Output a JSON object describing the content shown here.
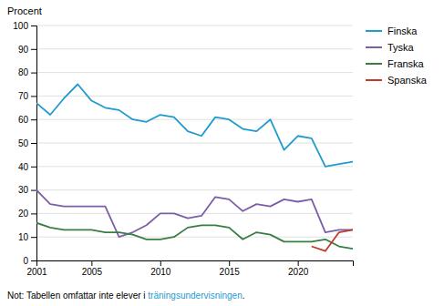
{
  "chart_data": {
    "type": "line",
    "ylabel": "Procent",
    "x": [
      2001,
      2002,
      2003,
      2004,
      2005,
      2006,
      2007,
      2008,
      2009,
      2010,
      2011,
      2012,
      2013,
      2014,
      2015,
      2016,
      2017,
      2018,
      2019,
      2020,
      2021,
      2022,
      2023,
      2024
    ],
    "series": [
      {
        "name": "Finska",
        "color": "#1f9bce",
        "values": [
          67,
          62,
          69,
          75,
          68,
          65,
          64,
          60,
          59,
          62,
          61,
          55,
          53,
          61,
          60,
          56,
          55,
          60,
          47,
          53,
          52,
          40,
          41,
          42
        ]
      },
      {
        "name": "Tyska",
        "color": "#7b5ea7",
        "values": [
          30,
          24,
          23,
          23,
          23,
          23,
          10,
          12,
          15,
          20,
          20,
          18,
          19,
          27,
          26,
          21,
          24,
          23,
          26,
          25,
          26,
          12,
          13,
          13
        ]
      },
      {
        "name": "Franska",
        "color": "#3a7d44",
        "values": [
          16,
          14,
          13,
          13,
          13,
          12,
          12,
          11,
          9,
          9,
          10,
          14,
          15,
          15,
          14,
          9,
          12,
          11,
          8,
          8,
          8,
          9,
          6,
          5
        ]
      },
      {
        "name": "Spanska",
        "color": "#c0392b",
        "values": [
          null,
          null,
          null,
          null,
          null,
          null,
          null,
          null,
          null,
          null,
          null,
          null,
          null,
          null,
          null,
          null,
          null,
          null,
          null,
          null,
          6,
          4,
          12,
          13
        ]
      }
    ],
    "xlim": [
      2001,
      2024
    ],
    "xticks": [
      2001,
      2005,
      2010,
      2015,
      2020
    ],
    "ylim": [
      0,
      100
    ],
    "yticks": [
      0,
      10,
      20,
      30,
      40,
      50,
      60,
      70,
      80,
      90,
      100
    ],
    "grid": "y",
    "legend": "right",
    "annotations": [
      {
        "text": "Not: Tabellen omfattar inte elever i ",
        "color": "#000000"
      },
      {
        "text": "träningsundervisningen",
        "color": "#1f9bce"
      },
      {
        "text": ".",
        "color": "#000000"
      }
    ]
  }
}
